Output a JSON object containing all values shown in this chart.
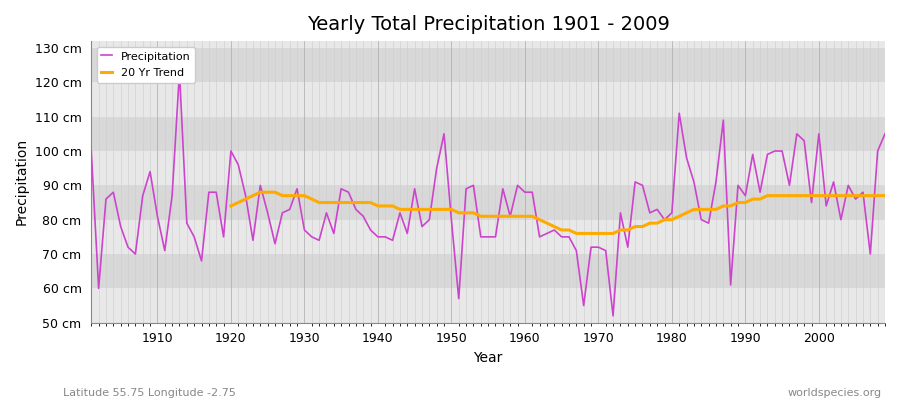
{
  "title": "Yearly Total Precipitation 1901 - 2009",
  "xlabel": "Year",
  "ylabel": "Precipitation",
  "subtitle": "Latitude 55.75 Longitude -2.75",
  "watermark": "worldspecies.org",
  "ylim": [
    50,
    132
  ],
  "yticks": [
    50,
    60,
    70,
    80,
    90,
    100,
    110,
    120,
    130
  ],
  "ytick_labels": [
    "50 cm",
    "60 cm",
    "70 cm",
    "80 cm",
    "90 cm",
    "100 cm",
    "110 cm",
    "120 cm",
    "130 cm"
  ],
  "start_year": 1901,
  "end_year": 2009,
  "precip_color": "#cc44cc",
  "trend_color": "#ffaa00",
  "bg_color_outer": "#f0f0f0",
  "bg_band_light": "#e8e8e8",
  "bg_band_dark": "#d8d8d8",
  "grid_color": "#bbbbcc",
  "legend_labels": [
    "Precipitation",
    "20 Yr Trend"
  ],
  "precipitation": [
    100,
    60,
    86,
    88,
    78,
    72,
    70,
    87,
    94,
    81,
    71,
    87,
    123,
    79,
    75,
    68,
    88,
    88,
    75,
    100,
    96,
    87,
    74,
    90,
    82,
    73,
    82,
    83,
    89,
    77,
    75,
    74,
    82,
    76,
    89,
    88,
    83,
    81,
    77,
    75,
    75,
    74,
    82,
    76,
    89,
    78,
    80,
    95,
    105,
    80,
    57,
    89,
    90,
    75,
    75,
    75,
    89,
    81,
    90,
    88,
    88,
    75,
    76,
    77,
    75,
    75,
    71,
    55,
    72,
    72,
    71,
    52,
    82,
    72,
    91,
    90,
    82,
    83,
    80,
    82,
    111,
    98,
    91,
    80,
    79,
    91,
    109,
    61,
    90,
    87,
    99,
    88,
    99,
    100,
    100,
    90,
    105,
    103,
    85,
    105,
    84,
    91,
    80,
    90,
    86,
    88,
    70,
    100,
    105
  ],
  "trend": [
    null,
    null,
    null,
    null,
    null,
    null,
    null,
    null,
    null,
    null,
    null,
    null,
    null,
    null,
    null,
    null,
    null,
    null,
    null,
    84,
    85,
    86,
    87,
    88,
    88,
    88,
    87,
    87,
    87,
    87,
    86,
    85,
    85,
    85,
    85,
    85,
    85,
    85,
    85,
    84,
    84,
    84,
    83,
    83,
    83,
    83,
    83,
    83,
    83,
    83,
    82,
    82,
    82,
    81,
    81,
    81,
    81,
    81,
    81,
    81,
    81,
    80,
    79,
    78,
    77,
    77,
    76,
    76,
    76,
    76,
    76,
    76,
    77,
    77,
    78,
    78,
    79,
    79,
    80,
    80,
    81,
    82,
    83,
    83,
    83,
    83,
    84,
    84,
    85,
    85,
    86,
    86,
    87,
    87,
    87,
    87,
    87,
    87,
    87,
    87,
    87,
    87,
    87,
    87,
    87,
    87,
    87,
    87,
    87
  ]
}
